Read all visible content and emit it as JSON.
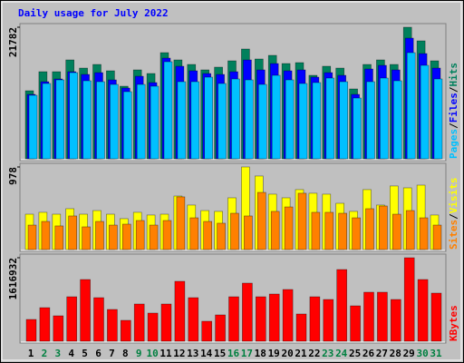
{
  "chart_data": [
    {
      "type": "bar",
      "title": "Daily usage for July 2022",
      "ylim": [
        0,
        21782
      ],
      "yticks": [
        21782
      ],
      "legend": "right",
      "legend_separator": "/",
      "series": [
        {
          "name": "Hits",
          "color": "#00805c",
          "values": [
            11265,
            14420,
            14420,
            16372,
            15020,
            15621,
            14570,
            12016,
            14720,
            14120,
            17575,
            16372,
            15621,
            14720,
            15171,
            16222,
            18175,
            16523,
            17124,
            15772,
            15922,
            13819,
            15321,
            15020,
            11566,
            15621,
            16372,
            15621,
            21782,
            19527,
            16222
          ]
        },
        {
          "name": "Files",
          "color": "#0000ff",
          "values": [
            10665,
            12767,
            13218,
            14420,
            13969,
            14269,
            13067,
            11716,
            13668,
            12617,
            16672,
            15320,
            14569,
            14119,
            13969,
            14419,
            16372,
            14720,
            15771,
            14569,
            14720,
            13518,
            14269,
            13818,
            10665,
            14870,
            15471,
            14720,
            19977,
            17423,
            15020
          ]
        },
        {
          "name": "Pages",
          "color": "#00c0ff",
          "values": [
            10514,
            12467,
            13067,
            14269,
            12917,
            12767,
            12316,
            11115,
            12316,
            12016,
            16071,
            12767,
            12767,
            13518,
            12467,
            13218,
            13067,
            12316,
            13818,
            13067,
            12467,
            12617,
            13368,
            12767,
            10063,
            12767,
            13368,
            12917,
            17573,
            15471,
            13218
          ]
        }
      ]
    },
    {
      "type": "bar",
      "ylim": [
        0,
        978
      ],
      "yticks": [
        978
      ],
      "legend": "right",
      "legend_separator": "/",
      "series": [
        {
          "name": "Visits",
          "color": "#ffff00",
          "values": [
            419,
            441,
            419,
            484,
            419,
            462,
            419,
            366,
            441,
            409,
            419,
            634,
            527,
            462,
            452,
            613,
            978,
            871,
            656,
            613,
            710,
            667,
            656,
            548,
            452,
            710,
            527,
            753,
            731,
            763,
            409
          ]
        },
        {
          "name": "Sites",
          "color": "#ff8000",
          "values": [
            290,
            333,
            280,
            398,
            269,
            333,
            290,
            301,
            344,
            290,
            344,
            624,
            376,
            333,
            312,
            430,
            398,
            677,
            452,
            505,
            667,
            441,
            441,
            430,
            376,
            484,
            516,
            419,
            462,
            376,
            290
          ]
        }
      ]
    },
    {
      "type": "bar",
      "ylim": [
        0,
        1616932
      ],
      "yticks": [
        1616932
      ],
      "legend": "right",
      "series": [
        {
          "name": "KBytes",
          "color": "#ff0000",
          "values": [
            421800,
            650275,
            492100,
            861175,
            1195100,
            843600,
            615125,
            404225,
            720575,
            544825,
            720575,
            1159950,
            843600,
            386650,
            509675,
            861175,
            1124800,
            861175,
            913900,
            1001775,
            527250,
            861175,
            808450,
            1388425,
            685425,
            949050,
            949050,
            808450,
            1616932,
            1195100,
            931475
          ]
        }
      ],
      "categories": [
        "1",
        "2",
        "3",
        "4",
        "5",
        "6",
        "7",
        "8",
        "9",
        "10",
        "11",
        "12",
        "13",
        "14",
        "15",
        "16",
        "17",
        "18",
        "19",
        "20",
        "21",
        "22",
        "23",
        "24",
        "25",
        "26",
        "27",
        "28",
        "29",
        "30",
        "31"
      ],
      "label_colors": [
        "#000000",
        "#008040",
        "#008040",
        "#000000",
        "#000000",
        "#000000",
        "#000000",
        "#000000",
        "#008040",
        "#008040",
        "#000000",
        "#000000",
        "#000000",
        "#000000",
        "#000000",
        "#008040",
        "#008040",
        "#000000",
        "#000000",
        "#000000",
        "#000000",
        "#000000",
        "#008040",
        "#008040",
        "#000000",
        "#000000",
        "#000000",
        "#000000",
        "#000000",
        "#008040",
        "#008040"
      ]
    }
  ]
}
